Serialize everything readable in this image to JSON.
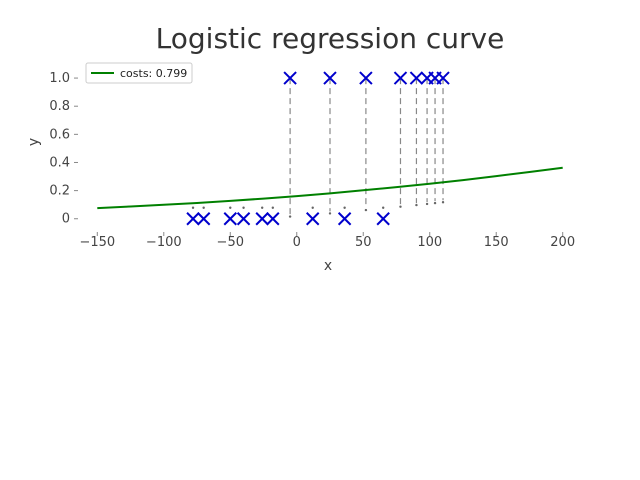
{
  "chart_data": {
    "type": "scatter",
    "title": "Logistic regression curve",
    "xlabel": "x",
    "ylabel": "y",
    "xlim": [
      -160,
      210
    ],
    "ylim": [
      -0.08,
      1.1
    ],
    "xticks": [
      -150,
      -100,
      -50,
      0,
      50,
      100,
      150,
      200
    ],
    "xtick_labels": [
      "−150",
      "−100",
      "−50",
      "0",
      "50",
      "100",
      "150",
      "200"
    ],
    "yticks": [
      0,
      0.2,
      0.4,
      0.6,
      0.8,
      1.0
    ],
    "ytick_labels": [
      "0",
      "0.2",
      "0.4",
      "0.6",
      "0.8",
      "1.0"
    ],
    "grid": false,
    "legend_position": "top-left",
    "series": [
      {
        "name": "costs: 0.799",
        "kind": "line",
        "color": "#008000",
        "x": [
          -150,
          -125,
          -100,
          -75,
          -50,
          -25,
          0,
          25,
          50,
          75,
          100,
          125,
          150,
          175,
          200
        ],
        "y": [
          0.076,
          0.087,
          0.099,
          0.112,
          0.127,
          0.143,
          0.161,
          0.18,
          0.202,
          0.225,
          0.249,
          0.275,
          0.303,
          0.332,
          0.362
        ]
      },
      {
        "kind": "scatter",
        "marker": "x",
        "color": "#0000cc",
        "points": [
          {
            "x": -78,
            "y": 0
          },
          {
            "x": -70,
            "y": 0
          },
          {
            "x": -50,
            "y": 0
          },
          {
            "x": -40,
            "y": 0
          },
          {
            "x": -26,
            "y": 0
          },
          {
            "x": -18,
            "y": 0
          },
          {
            "x": 12,
            "y": 0
          },
          {
            "x": 36,
            "y": 0
          },
          {
            "x": 65,
            "y": 0
          },
          {
            "x": -5,
            "y": 1
          },
          {
            "x": 25,
            "y": 1
          },
          {
            "x": 52,
            "y": 1
          },
          {
            "x": 78,
            "y": 1
          },
          {
            "x": 90,
            "y": 1
          },
          {
            "x": 98,
            "y": 1
          },
          {
            "x": 104,
            "y": 1
          },
          {
            "x": 110,
            "y": 1
          }
        ]
      }
    ],
    "residual_lines": {
      "style": "dashed",
      "color": "#888888",
      "description_connects": "each point to the curve"
    }
  }
}
